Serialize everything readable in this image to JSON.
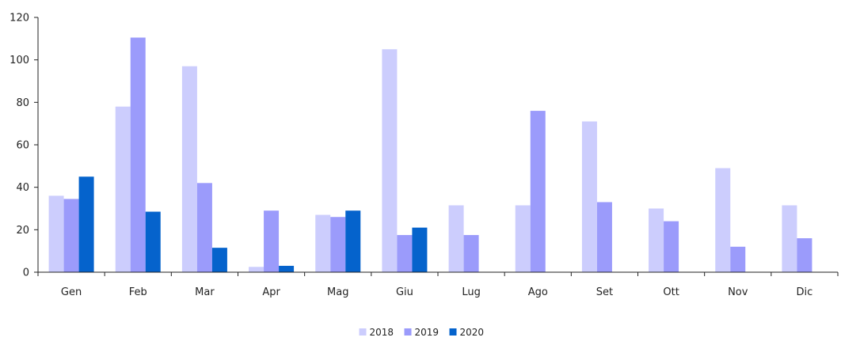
{
  "chart_data": {
    "type": "bar",
    "categories": [
      "Gen",
      "Feb",
      "Mar",
      "Apr",
      "Mag",
      "Giu",
      "Lug",
      "Ago",
      "Set",
      "Ott",
      "Nov",
      "Dic"
    ],
    "series": [
      {
        "name": "2018",
        "color": "#cccdfd",
        "values": [
          36,
          78,
          97,
          2.5,
          27,
          105,
          31.5,
          31.5,
          71,
          30,
          49,
          31.5
        ]
      },
      {
        "name": "2019",
        "color": "#9b9bfb",
        "values": [
          34.5,
          110.5,
          42,
          29,
          26,
          17.5,
          17.5,
          76,
          33,
          24,
          12,
          16
        ]
      },
      {
        "name": "2020",
        "color": "#0563cc",
        "values": [
          45,
          28.5,
          11.5,
          3,
          29,
          21,
          null,
          null,
          null,
          null,
          null,
          null
        ]
      }
    ],
    "yticks": [
      "0",
      "20",
      "40",
      "60",
      "80",
      "100",
      "120"
    ],
    "ylim": [
      0,
      120
    ],
    "grid": false,
    "legend_position": "bottom-center"
  }
}
